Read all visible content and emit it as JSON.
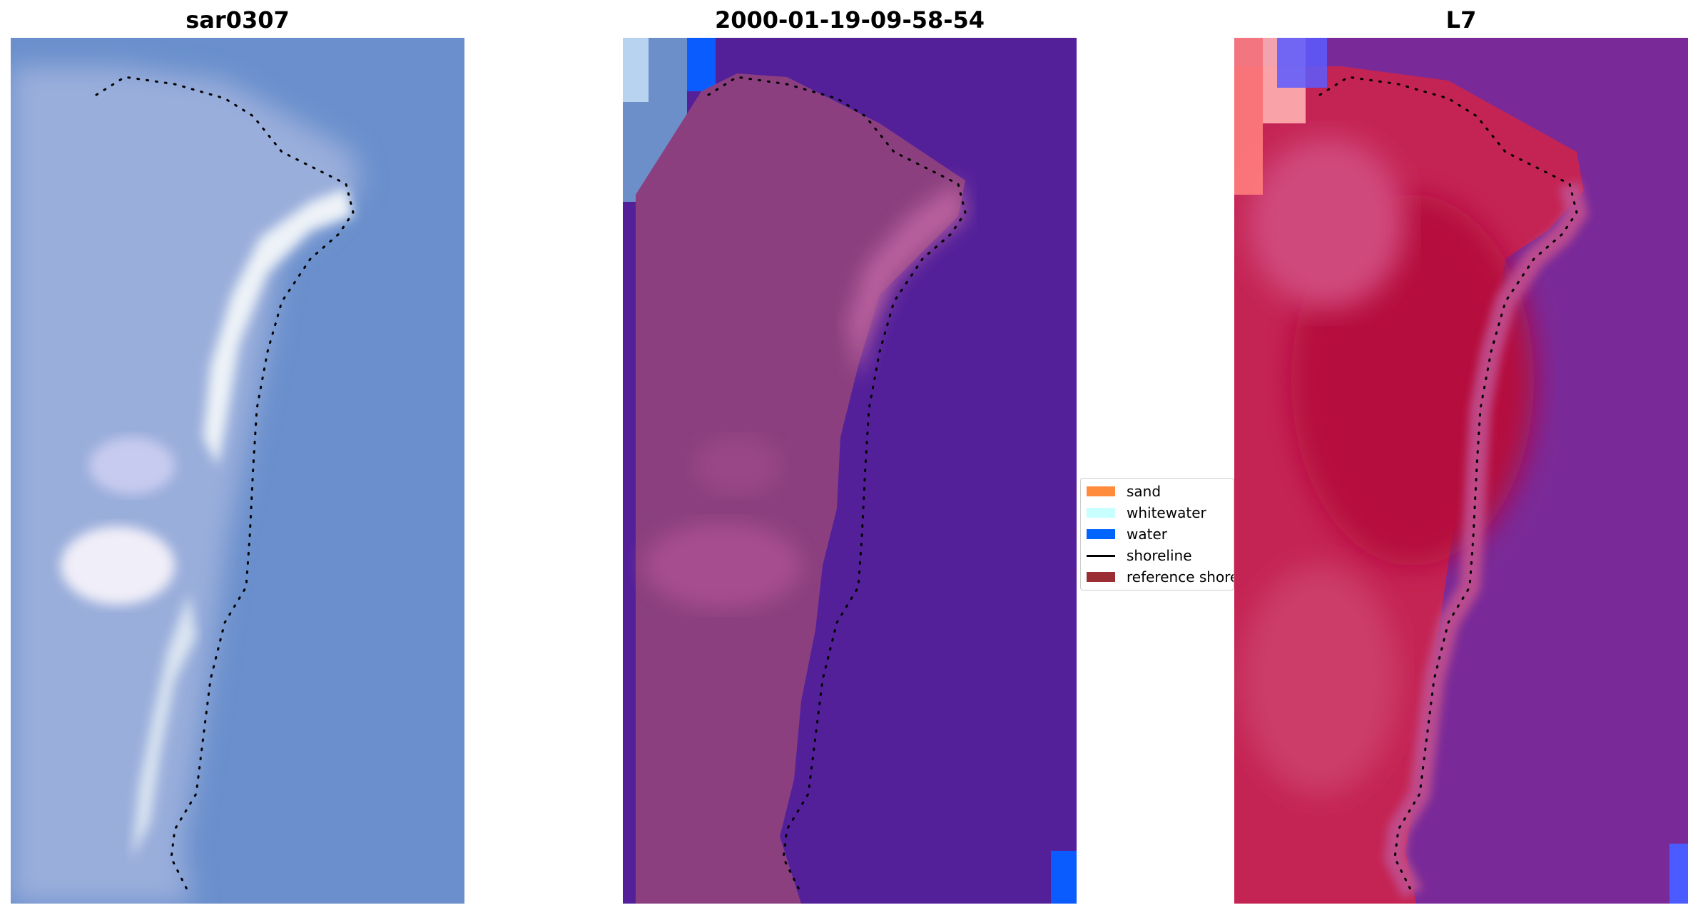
{
  "panels": [
    {
      "title": "sar0307"
    },
    {
      "title": "2000-01-19-09-58-54"
    },
    {
      "title": "L7"
    }
  ],
  "legend": {
    "items": [
      {
        "label": "sand",
        "color": "#ff8c3c",
        "kind": "patch"
      },
      {
        "label": "whitewater",
        "color": "#c8ffff",
        "kind": "patch"
      },
      {
        "label": "water",
        "color": "#0064ff",
        "kind": "patch"
      },
      {
        "label": "shoreline",
        "color": "#000000",
        "kind": "line"
      },
      {
        "label": "reference shoreline",
        "color": "#9b2d35",
        "kind": "patch"
      }
    ]
  },
  "colors": {
    "rgb_water": "#6a90cc",
    "rgb_land": "#9fb0d8",
    "rgb_sand": "#e6eef6",
    "class_water": "#53209a",
    "class_land": "#8d3f7f",
    "class_sand": "#b25a9a",
    "class_water_blue": "#0a5cff",
    "ndwi_water": "#7a2a96",
    "ndwi_land": "#c0234f",
    "ndwi_land_light": "#d24a7a"
  }
}
